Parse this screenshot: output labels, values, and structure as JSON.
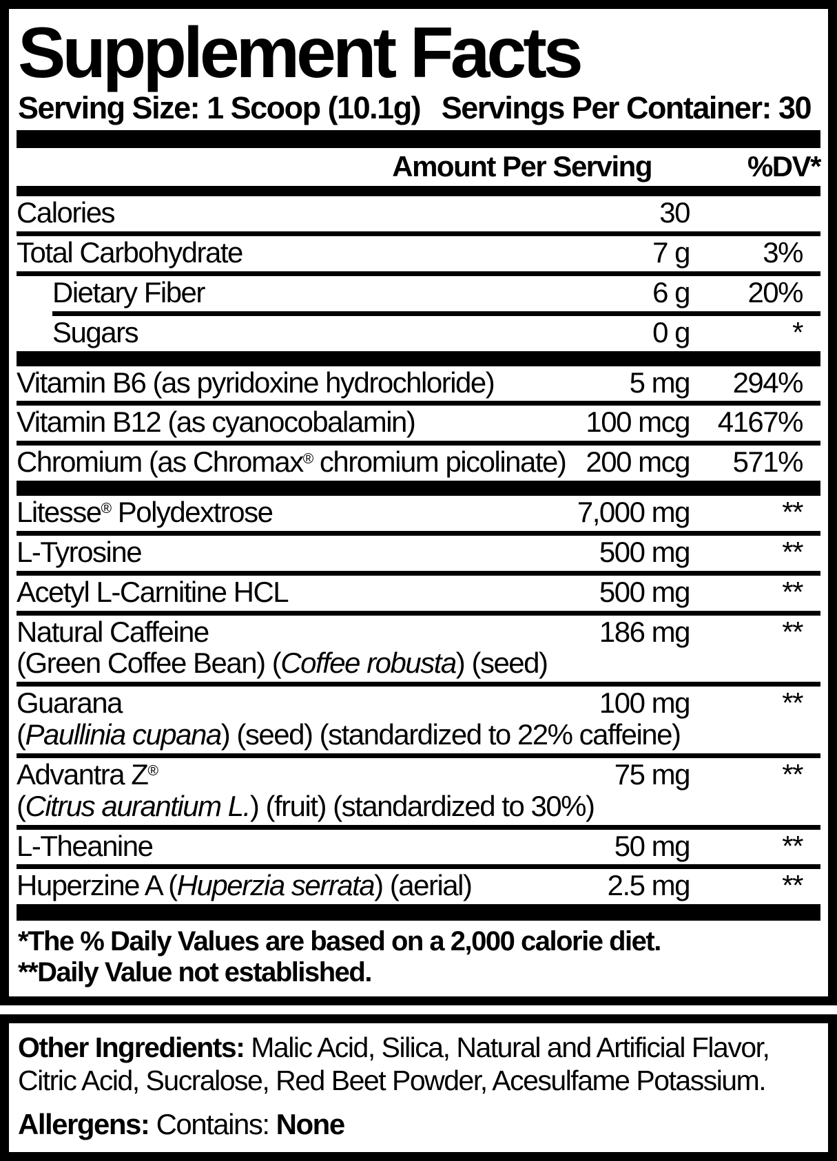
{
  "colors": {
    "ink": "#000000",
    "paper": "#ffffff"
  },
  "label": {
    "title": "Supplement Facts",
    "serving_size": "Serving Size: 1 Scoop (10.1g)",
    "servings_per_container": "Servings Per Container: 30",
    "col_amount": "Amount Per Serving",
    "col_dv": "%DV*",
    "rows": [
      {
        "divider": "none",
        "indent": false,
        "name": [
          {
            "t": "Calories"
          }
        ],
        "amount": "30",
        "dv": ""
      },
      {
        "divider": "line",
        "indent": false,
        "name": [
          {
            "t": "Total Carbohydrate"
          }
        ],
        "amount": "7 g",
        "dv": "3%"
      },
      {
        "divider": "line",
        "indent": true,
        "name": [
          {
            "t": "Dietary Fiber"
          }
        ],
        "amount": "6 g",
        "dv": "20%"
      },
      {
        "divider": "line-indent",
        "indent": true,
        "name": [
          {
            "t": "Sugars"
          }
        ],
        "amount": "0 g",
        "dv": "*"
      },
      {
        "divider": "bar",
        "indent": false,
        "name": [
          {
            "t": "Vitamin B6 (as pyridoxine hydrochloride)"
          }
        ],
        "amount": "5 mg",
        "dv": "294%"
      },
      {
        "divider": "line",
        "indent": false,
        "name": [
          {
            "t": "Vitamin B12 (as cyanocobalamin)"
          }
        ],
        "amount": "100 mcg",
        "dv": "4167%"
      },
      {
        "divider": "line",
        "indent": false,
        "name": [
          {
            "t": "Chromium (as Chromax"
          },
          {
            "t": "®",
            "s": "sup"
          },
          {
            "t": " chromium picolinate)"
          }
        ],
        "amount": "200 mcg",
        "dv": "571%"
      },
      {
        "divider": "bar",
        "indent": false,
        "name": [
          {
            "t": "Litesse"
          },
          {
            "t": "®",
            "s": "sup"
          },
          {
            "t": " Polydextrose"
          }
        ],
        "amount": "7,000 mg",
        "dv": "**"
      },
      {
        "divider": "line",
        "indent": false,
        "name": [
          {
            "t": "L-Tyrosine"
          }
        ],
        "amount": "500 mg",
        "dv": "**"
      },
      {
        "divider": "line",
        "indent": false,
        "name": [
          {
            "t": "Acetyl L-Carnitine HCL"
          }
        ],
        "amount": "500 mg",
        "dv": "**"
      },
      {
        "divider": "line",
        "indent": false,
        "name": [
          {
            "t": "Natural Caffeine"
          }
        ],
        "amount": "186 mg",
        "dv": "**",
        "sub": [
          {
            "t": "(Green Coffee Bean) ("
          },
          {
            "t": "Coffee robusta",
            "s": "i"
          },
          {
            "t": ") (seed)"
          }
        ]
      },
      {
        "divider": "line",
        "indent": false,
        "name": [
          {
            "t": "Guarana"
          }
        ],
        "amount": "100 mg",
        "dv": "**",
        "sub": [
          {
            "t": "("
          },
          {
            "t": "Paullinia cupana",
            "s": "i"
          },
          {
            "t": ") (seed) (standardized to 22% caffeine)"
          }
        ]
      },
      {
        "divider": "line",
        "indent": false,
        "name": [
          {
            "t": "Advantra Z"
          },
          {
            "t": "®",
            "s": "sup"
          }
        ],
        "amount": "75 mg",
        "dv": "**",
        "sub": [
          {
            "t": "("
          },
          {
            "t": "Citrus aurantium L.",
            "s": "i"
          },
          {
            "t": ") (fruit) (standardized to 30%)"
          }
        ]
      },
      {
        "divider": "line",
        "indent": false,
        "name": [
          {
            "t": "L-Theanine"
          }
        ],
        "amount": "50 mg",
        "dv": "**"
      },
      {
        "divider": "line",
        "indent": false,
        "name": [
          {
            "t": "Huperzine A ("
          },
          {
            "t": "Huperzia serrata",
            "s": "i"
          },
          {
            "t": ") (aerial)"
          }
        ],
        "amount": "2.5 mg",
        "dv": "**"
      }
    ],
    "footnotes": [
      "*The % Daily Values are based on a 2,000 calorie diet.",
      "**Daily Value not established."
    ]
  },
  "other_box": {
    "other_label": "Other Ingredients: ",
    "other_text": "Malic Acid, Silica, Natural and Artificial Flavor, Citric Acid, Sucralose, Red Beet Powder, Acesulfame Potassium.",
    "allergens_label": "Allergens: ",
    "allergens_mid": "Contains: ",
    "allergens_value": "None"
  }
}
